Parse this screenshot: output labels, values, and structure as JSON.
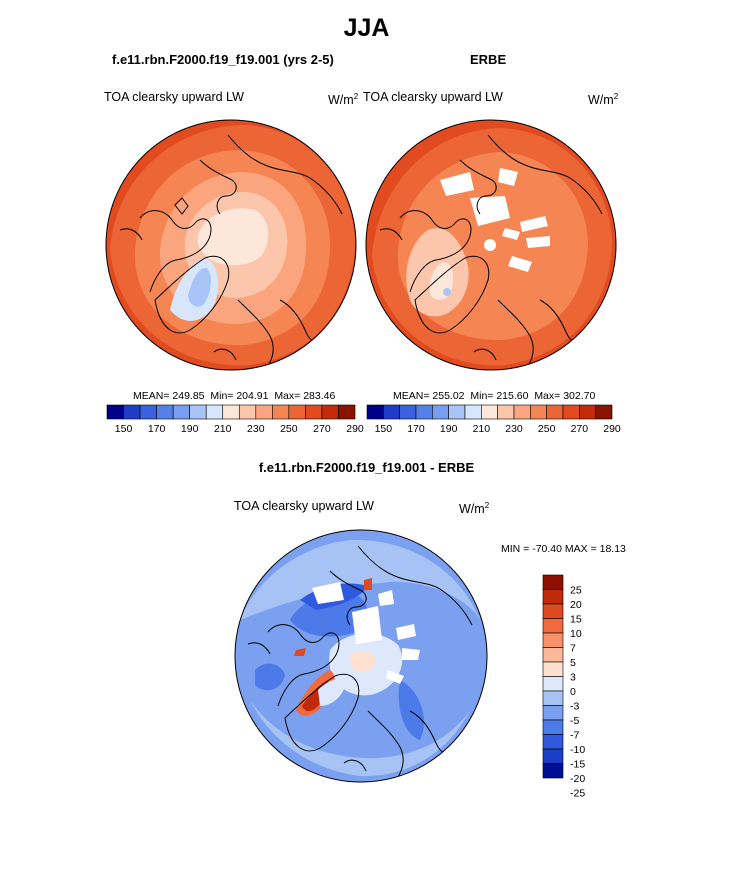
{
  "title": "JJA",
  "colors": {
    "seq": [
      "#00008b",
      "#1e3cc8",
      "#3a61df",
      "#5480e8",
      "#779ef0",
      "#a9c4f6",
      "#d8e6fb",
      "#fde6da",
      "#fcc6ac",
      "#fba57e",
      "#f58552",
      "#ec6534",
      "#e24a20",
      "#c42b0a",
      "#8a1400"
    ],
    "diff": [
      "#000e94",
      "#1a3ec6",
      "#2f5adf",
      "#4d7ae9",
      "#7aa0ef",
      "#a7c2f5",
      "#dde9fb",
      "#fde0cf",
      "#fbb89a",
      "#f79169",
      "#f06a3e",
      "#dd4a20",
      "#be2a0a",
      "#8c1000"
    ],
    "coast": "#000000"
  },
  "panels": [
    {
      "heading": "f.e11.rbn.F2000.f19_f19.001 (yrs 2-5)",
      "variable": "TOA clearsky upward LW",
      "units": "W/m",
      "units_exp": "2",
      "mean_label": "MEAN=",
      "mean": "249.85",
      "min_label": "Min=",
      "min": "204.91",
      "max_label": "Max=",
      "max": "283.46"
    },
    {
      "heading": "ERBE",
      "variable": "TOA clearsky upward LW",
      "units": "W/m",
      "units_exp": "2",
      "mean_label": "MEAN=",
      "mean": "255.02",
      "min_label": "Min=",
      "min": "215.60",
      "max_label": "Max=",
      "max": "302.70"
    },
    {
      "heading": "f.e11.rbn.F2000.f19_f19.001 - ERBE",
      "variable": "TOA clearsky upward LW",
      "units": "W/m",
      "units_exp": "2",
      "minmax_text": "MIN = -70.40 MAX =  18.13"
    }
  ],
  "chart_data": [
    {
      "type": "heatmap",
      "projection": "polar stereographic (north pole)",
      "title": "f.e11.rbn.F2000.f19_f19.001 (yrs 2-5)",
      "variable": "TOA clearsky upward LW",
      "units": "W/m2",
      "stats": {
        "mean": 249.85,
        "min": 204.91,
        "max": 283.46
      },
      "colorbar_levels": [
        150,
        160,
        170,
        180,
        190,
        200,
        210,
        220,
        230,
        240,
        250,
        260,
        270,
        280,
        290
      ],
      "colorbar_ticks": [
        "150",
        "170",
        "190",
        "210",
        "230",
        "250",
        "270",
        "290"
      ]
    },
    {
      "type": "heatmap",
      "projection": "polar stereographic (north pole)",
      "title": "ERBE",
      "variable": "TOA clearsky upward LW",
      "units": "W/m2",
      "stats": {
        "mean": 255.02,
        "min": 215.6,
        "max": 302.7
      },
      "colorbar_levels": [
        150,
        160,
        170,
        180,
        190,
        200,
        210,
        220,
        230,
        240,
        250,
        260,
        270,
        280,
        290
      ],
      "colorbar_ticks": [
        "150",
        "170",
        "190",
        "210",
        "230",
        "250",
        "270",
        "290"
      ]
    },
    {
      "type": "heatmap",
      "projection": "polar stereographic (north pole)",
      "title": "f.e11.rbn.F2000.f19_f19.001 - ERBE",
      "variable": "TOA clearsky upward LW",
      "units": "W/m2",
      "stats": {
        "min": -70.4,
        "max": 18.13
      },
      "colorbar_levels": [
        -25,
        -20,
        -15,
        -10,
        -7,
        -5,
        -3,
        0,
        3,
        5,
        7,
        10,
        15,
        20,
        25
      ],
      "colorbar_ticks": [
        "25",
        "20",
        "15",
        "10",
        "7",
        "5",
        "3",
        "0",
        "-3",
        "-5",
        "-7",
        "-10",
        "-15",
        "-20",
        "-25"
      ]
    }
  ]
}
